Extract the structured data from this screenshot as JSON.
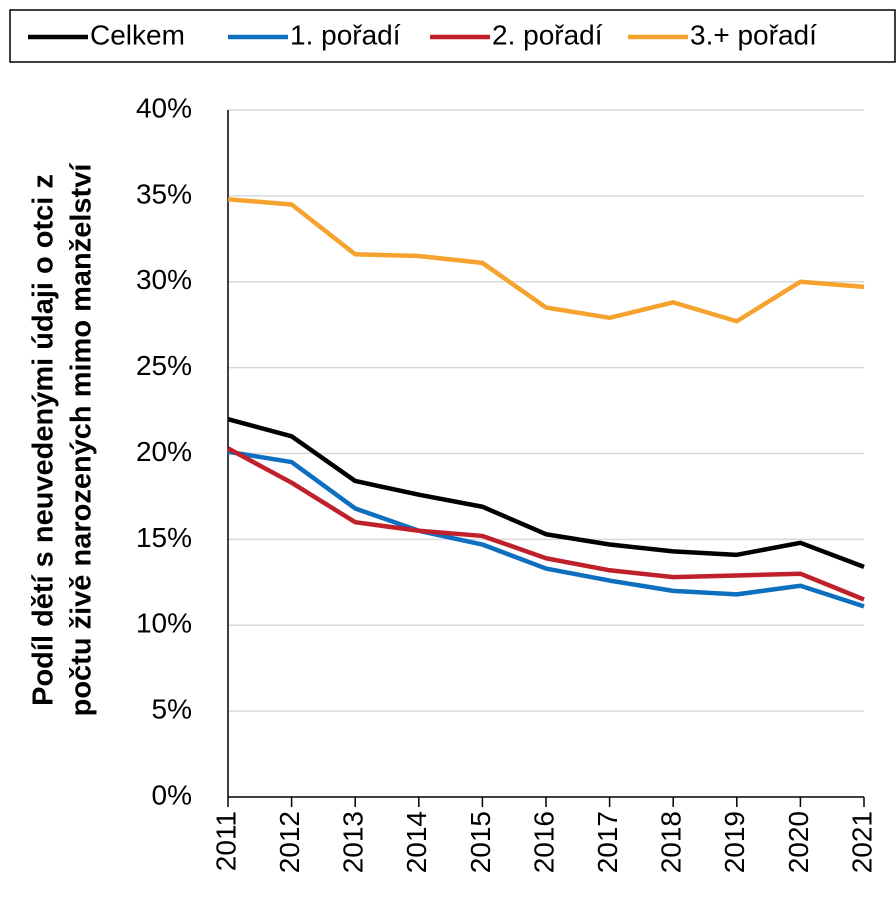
{
  "chart_data": {
    "type": "line",
    "y_label": [
      "Podíl dětí s neuvedenými údaji o otci z",
      "počtu živě narozených mimo manželství"
    ],
    "categories": [
      "2011",
      "2012",
      "2013",
      "2014",
      "2015",
      "2016",
      "2017",
      "2018",
      "2019",
      "2020",
      "2021"
    ],
    "series": [
      {
        "name": "Celkem",
        "color": "#000000",
        "values": [
          22.0,
          21.0,
          18.4,
          17.6,
          16.9,
          15.3,
          14.7,
          14.3,
          14.1,
          14.8,
          13.4
        ]
      },
      {
        "name": "1. pořadí",
        "color": "#0f6fbf",
        "values": [
          20.1,
          19.5,
          16.8,
          15.5,
          14.7,
          13.3,
          12.6,
          12.0,
          11.8,
          12.3,
          11.1
        ]
      },
      {
        "name": "2. pořadí",
        "color": "#c0202a",
        "values": [
          20.3,
          18.3,
          16.0,
          15.5,
          15.2,
          13.9,
          13.2,
          12.8,
          12.9,
          13.0,
          11.5
        ]
      },
      {
        "name": "3.+ pořadí",
        "color": "#f5a22f",
        "values": [
          34.8,
          34.5,
          31.6,
          31.5,
          31.1,
          28.5,
          27.9,
          28.8,
          27.7,
          30.0,
          29.7
        ]
      }
    ],
    "ylim": [
      0,
      40
    ],
    "yticks": [
      {
        "value": 0,
        "label": "0%"
      },
      {
        "value": 5,
        "label": "5%"
      },
      {
        "value": 10,
        "label": "10%"
      },
      {
        "value": 15,
        "label": "15%"
      },
      {
        "value": 20,
        "label": "20%"
      },
      {
        "value": 25,
        "label": "25%"
      },
      {
        "value": 30,
        "label": "30%"
      },
      {
        "value": 35,
        "label": "35%"
      },
      {
        "value": 40,
        "label": "40%"
      }
    ],
    "grid": true,
    "legend": "top"
  }
}
